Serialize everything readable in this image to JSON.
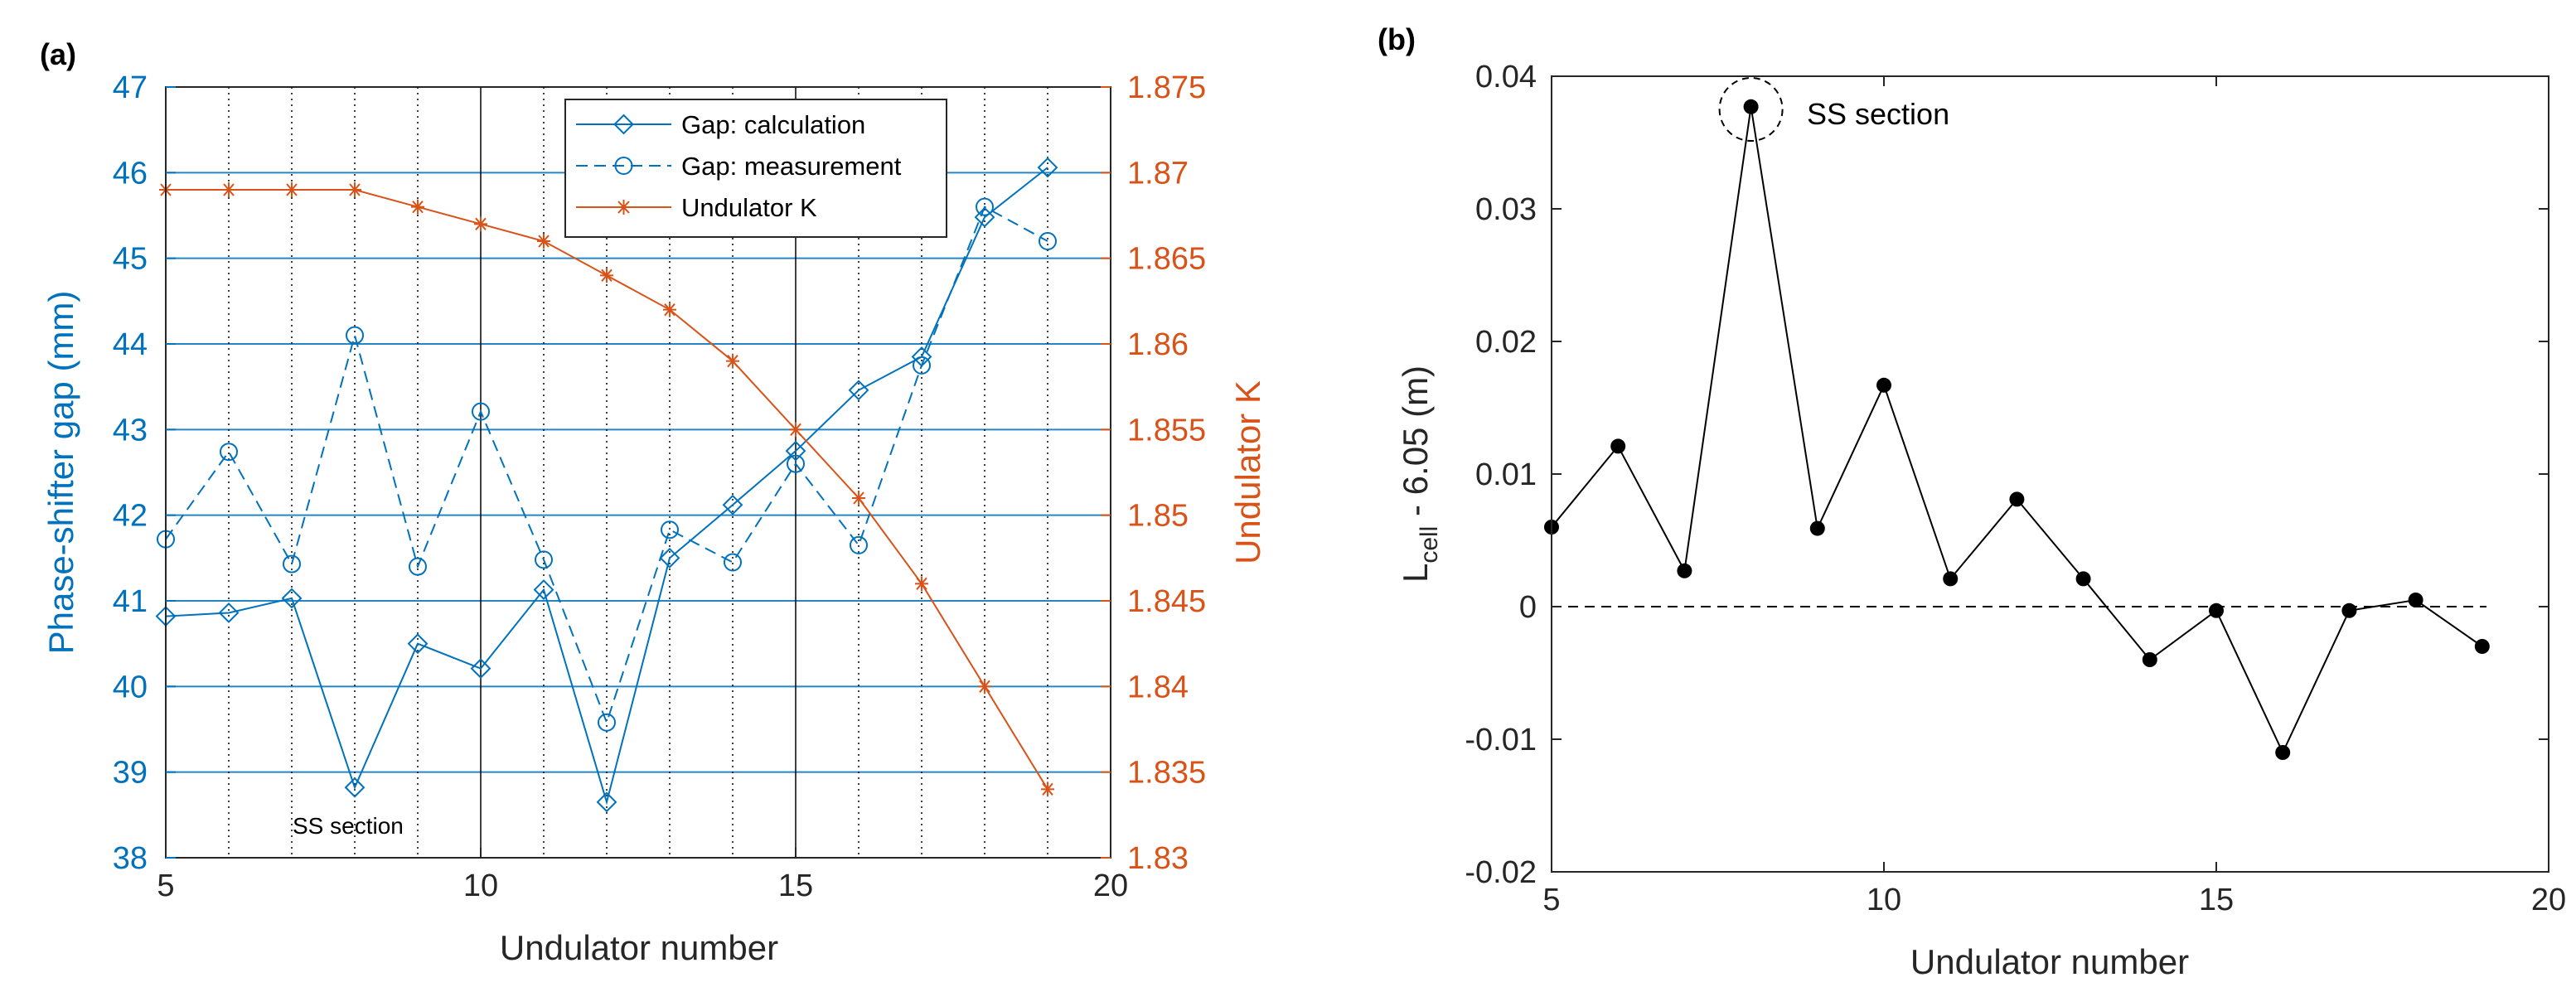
{
  "colors": {
    "blue": "#0072bd",
    "orange": "#d95319",
    "black": "#000000"
  },
  "chart_data": [
    {
      "panel_label": "(a)",
      "type": "line",
      "xlabel": "Undulator number",
      "ylabel_left": "Phase-shifter gap (mm)",
      "ylabel_right": "Undulator K",
      "xlim": [
        5,
        20
      ],
      "ylim_left": [
        38,
        47
      ],
      "ylim_right": [
        1.83,
        1.875
      ],
      "xticks": [
        5,
        10,
        15,
        20
      ],
      "yticks_left": [
        38,
        39,
        40,
        41,
        42,
        43,
        44,
        45,
        46,
        47
      ],
      "yticks_right": [
        "1.83",
        "1.835",
        "1.84",
        "1.845",
        "1.85",
        "1.855",
        "1.86",
        "1.865",
        "1.87",
        "1.875"
      ],
      "annotation": {
        "text": "SS section",
        "x": 8,
        "y": 38.6
      },
      "legend": {
        "location": "top-center",
        "entries": [
          "Gap: calculation",
          "Gap: measurement",
          "Undulator K"
        ]
      },
      "series": [
        {
          "name": "Gap: calculation",
          "axis": "left",
          "marker": "diamond",
          "style": "solid",
          "x": [
            5,
            6,
            7,
            8,
            9,
            10,
            11,
            12,
            13,
            14,
            15,
            16,
            17,
            18,
            19
          ],
          "y": [
            40.82,
            40.86,
            41.03,
            38.82,
            40.5,
            40.21,
            41.13,
            38.65,
            41.5,
            42.12,
            42.75,
            43.46,
            43.85,
            45.48,
            46.06
          ]
        },
        {
          "name": "Gap: measurement",
          "axis": "left",
          "marker": "circle",
          "style": "dashed",
          "x": [
            5,
            6,
            7,
            8,
            9,
            10,
            11,
            12,
            13,
            14,
            15,
            16,
            17,
            18,
            19
          ],
          "y": [
            41.72,
            42.74,
            41.43,
            44.1,
            41.4,
            43.21,
            41.48,
            39.58,
            41.83,
            41.45,
            42.6,
            41.65,
            43.75,
            45.6,
            45.2
          ]
        },
        {
          "name": "Undulator K",
          "axis": "right",
          "marker": "star",
          "style": "solid",
          "x": [
            5,
            6,
            7,
            8,
            9,
            10,
            11,
            12,
            13,
            14,
            15,
            16,
            17,
            18,
            19
          ],
          "y": [
            1.869,
            1.869,
            1.869,
            1.869,
            1.868,
            1.867,
            1.866,
            1.864,
            1.862,
            1.859,
            1.855,
            1.851,
            1.846,
            1.84,
            1.834
          ]
        }
      ]
    },
    {
      "panel_label": "(b)",
      "type": "line",
      "xlabel": "Undulator number",
      "ylabel_main": "L",
      "ylabel_sub": "cell",
      "ylabel_rest": " - 6.05  (m)",
      "xlim": [
        5,
        20
      ],
      "ylim": [
        -0.02,
        0.04
      ],
      "xticks": [
        5,
        10,
        15,
        20
      ],
      "yticks": [
        "-0.02",
        "-0.01",
        "0",
        "0.01",
        "0.02",
        "0.03",
        "0.04"
      ],
      "annotation": {
        "text": "SS section",
        "x": 8,
        "y": 0.0375
      },
      "series": [
        {
          "name": "L_cell - 6.05",
          "marker": "filled-circle",
          "style": "solid",
          "x": [
            5,
            6,
            7,
            8,
            9,
            10,
            11,
            12,
            13,
            14,
            15,
            16,
            17,
            18,
            19
          ],
          "y": [
            0.006,
            0.0121,
            0.0027,
            0.0377,
            0.0059,
            0.0167,
            0.0021,
            0.0081,
            0.0021,
            -0.004,
            -0.0003,
            -0.011,
            -0.0003,
            0.0005,
            -0.003
          ]
        }
      ]
    }
  ]
}
